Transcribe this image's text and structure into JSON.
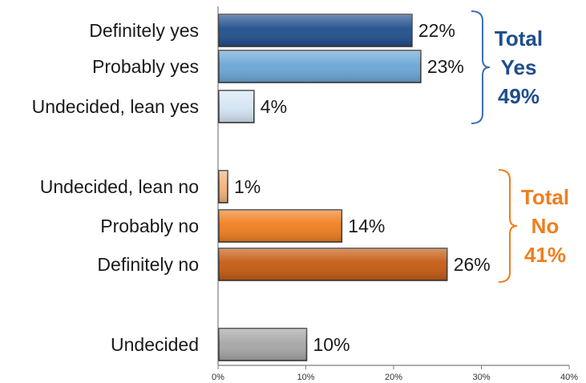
{
  "chart_data": {
    "type": "bar",
    "orientation": "horizontal",
    "categories": [
      "Definitely yes",
      "Probably yes",
      "Undecided, lean yes",
      "Undecided, lean no",
      "Probably no",
      "Definitely no",
      "Undecided"
    ],
    "values": [
      22,
      23,
      4,
      1,
      14,
      26,
      10
    ],
    "value_labels": [
      "22%",
      "23%",
      "4%",
      "1%",
      "14%",
      "26%",
      "10%"
    ],
    "bar_colors": [
      "#1f4e8c",
      "#6aa6d6",
      "#d6e6f4",
      "#f3b27a",
      "#f07e1e",
      "#c55a11",
      "#a6a6a6"
    ],
    "xlim": [
      0,
      40
    ],
    "x_ticks": [
      "0%",
      "10%",
      "20%",
      "30%",
      "40%"
    ],
    "groups": [
      {
        "lines": [
          "Total",
          "Yes",
          "49%"
        ],
        "color": "#1f4e8c",
        "bracket_color": "#3c6fb0",
        "members": [
          0,
          1,
          2
        ]
      },
      {
        "lines": [
          "Total",
          "No",
          "41%"
        ],
        "color": "#f07e1e",
        "bracket_color": "#f07e1e",
        "members": [
          3,
          4,
          5
        ]
      }
    ],
    "grid": false,
    "legend": "none"
  }
}
